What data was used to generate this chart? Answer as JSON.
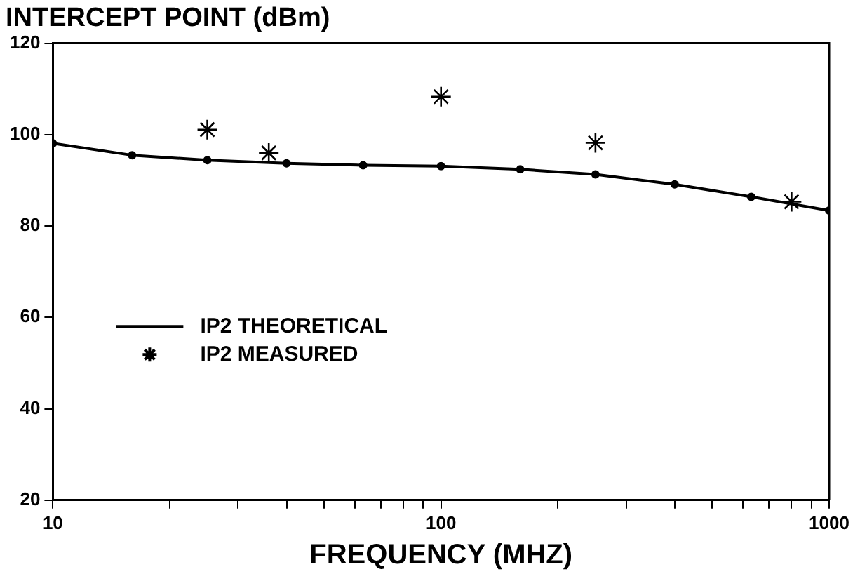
{
  "chart_data": {
    "type": "line",
    "ylabel": "INTERCEPT POINT (dBm)",
    "xlabel": "FREQUENCY (MHZ)",
    "log": "x",
    "xlim": [
      10,
      1000
    ],
    "xticks": [
      10,
      {
        "value": 20,
        "label": null
      },
      {
        "value": 30,
        "label": null
      },
      {
        "value": 40,
        "label": null
      },
      {
        "value": 50,
        "label": null
      },
      {
        "value": 60,
        "label": null
      },
      {
        "value": 70,
        "label": null
      },
      {
        "value": 80,
        "label": null
      },
      {
        "value": 90,
        "label": null
      },
      100,
      {
        "value": 200,
        "label": null
      },
      {
        "value": 300,
        "label": null
      },
      {
        "value": 400,
        "label": null
      },
      {
        "value": 500,
        "label": null
      },
      {
        "value": 600,
        "label": null
      },
      {
        "value": 700,
        "label": null
      },
      {
        "value": 800,
        "label": null
      },
      {
        "value": 900,
        "label": null
      },
      1000
    ],
    "ylim": [
      20,
      120
    ],
    "yticks": [
      20,
      40,
      60,
      80,
      100,
      120
    ],
    "grid": false,
    "legend": "left",
    "series": [
      {
        "name": "IP2 THEORETICAL",
        "type": "line",
        "color": "#000000",
        "marker": "circle",
        "line_style": "solid",
        "x": [
          10,
          16,
          25,
          40,
          63,
          100,
          160,
          250,
          400,
          630,
          1000
        ],
        "values": [
          98.1,
          95.5,
          94.4,
          93.7,
          93.3,
          93.1,
          92.4,
          91.3,
          89.1,
          86.4,
          83.4
        ]
      },
      {
        "name": "IP2 MEASURED",
        "type": "scatter",
        "color": "#000000",
        "marker": "cross",
        "x": [
          25,
          36,
          100,
          250,
          800
        ],
        "values": [
          101.1,
          96.0,
          108.3,
          98.2,
          85.3
        ]
      }
    ]
  }
}
